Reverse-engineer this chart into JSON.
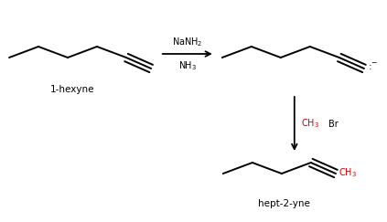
{
  "background_color": "#ffffff",
  "fig_width": 4.23,
  "fig_height": 2.43,
  "dpi": 100,
  "label_1hexyne": "1-hexyne",
  "label_product": "hept-2-yne",
  "arrow_color": "#000000",
  "red_color": "#cc0000",
  "black_color": "#000000",
  "line_width": 1.4,
  "triple_sep": 0.045
}
